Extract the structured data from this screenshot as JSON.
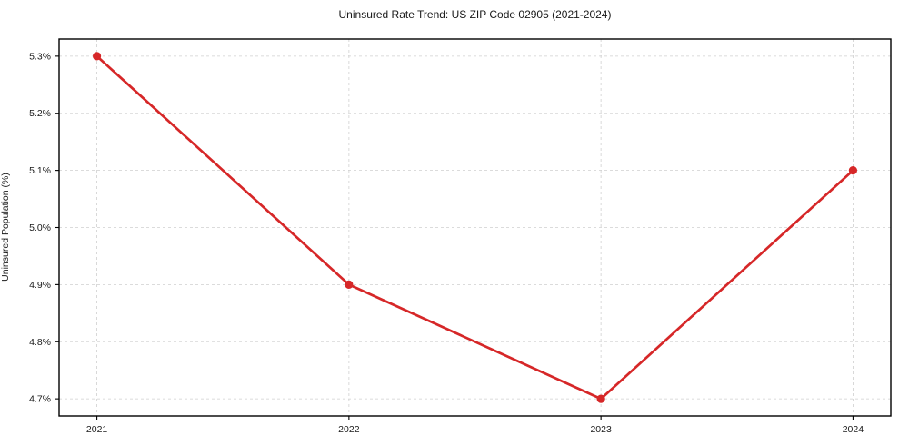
{
  "chart_data": {
    "type": "line",
    "title": "Uninsured Rate Trend: US ZIP Code 02905 (2021-2024)",
    "xlabel": "",
    "ylabel": "Uninsured Population (%)",
    "x": [
      2021,
      2022,
      2023,
      2024
    ],
    "x_tick_labels": [
      "2021",
      "2022",
      "2023",
      "2024"
    ],
    "series": [
      {
        "name": "Uninsured rate",
        "values": [
          5.3,
          4.9,
          4.7,
          5.1
        ]
      }
    ],
    "y_ticks": [
      5.3,
      5.2,
      5.1,
      5.0,
      4.9,
      4.8,
      4.7
    ],
    "y_tick_labels": [
      "5.3%",
      "5.2%",
      "5.1%",
      "5.0%",
      "4.9%",
      "4.8%",
      "4.7%"
    ],
    "xlim": [
      2020.85,
      2024.15
    ],
    "ylim": [
      4.67,
      5.33
    ],
    "grid": true,
    "legend": false,
    "line_color": "#d62728",
    "marker": "circle",
    "grid_color": "#cfcfcf",
    "spine_color": "#000000",
    "text_color": "#1a1a1a",
    "background": "#ffffff"
  }
}
